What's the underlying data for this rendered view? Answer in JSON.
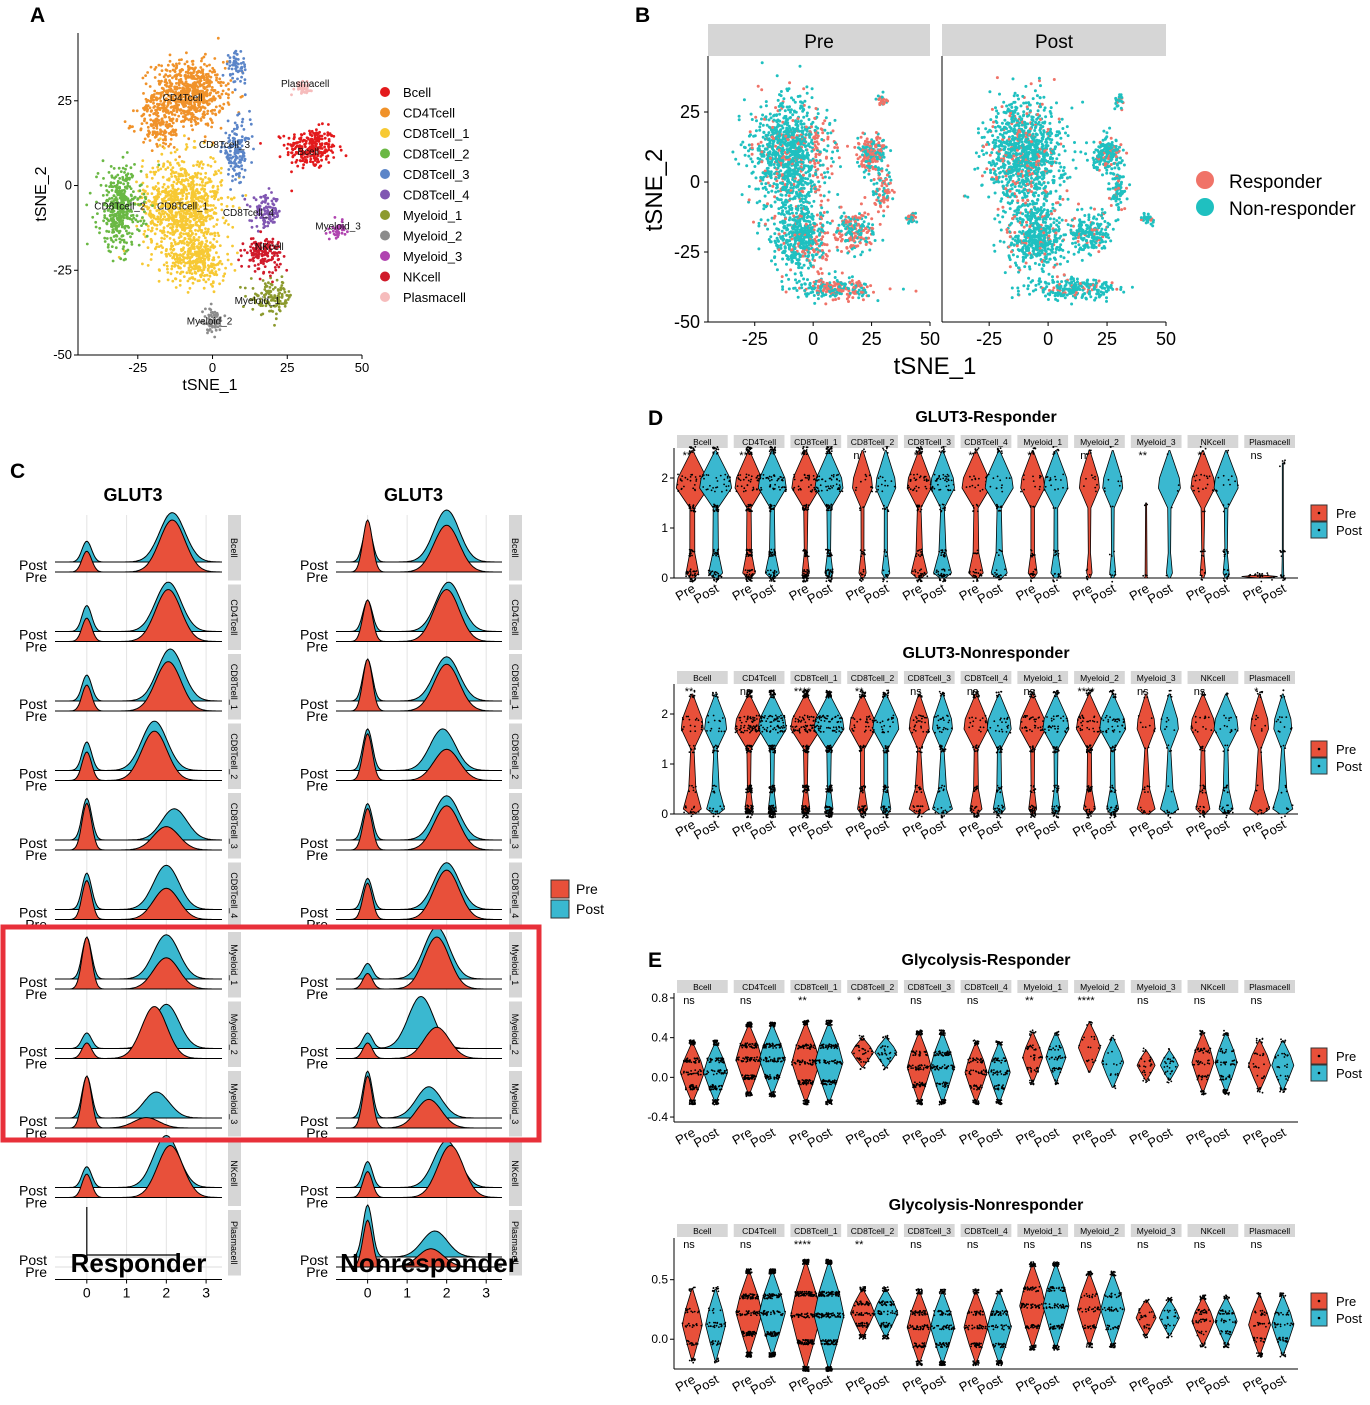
{
  "colors": {
    "pre": "#e8503a",
    "post": "#3ab8d0",
    "responder": "#f07368",
    "nonresponder": "#1fc0c0",
    "strip": "#d6d6d6",
    "highlight": "#e8303a",
    "cluster_colors": [
      "#e31a1c",
      "#f0922a",
      "#f7c934",
      "#6ab844",
      "#5b85c8",
      "#8056b2",
      "#8c9a2e",
      "#8c8c8c",
      "#b044b0",
      "#d01a2a",
      "#f6bcbc"
    ]
  },
  "panel_labels": [
    "A",
    "B",
    "C",
    "D",
    "E"
  ],
  "clusters": [
    "Bcell",
    "CD4Tcell",
    "CD8Tcell_1",
    "CD8Tcell_2",
    "CD8Tcell_3",
    "CD8Tcell_4",
    "Myeloid_1",
    "Myeloid_2",
    "Myeloid_3",
    "NKcell",
    "Plasmacell"
  ],
  "chart_data": [
    {
      "id": "A",
      "type": "scatter",
      "title": "",
      "xlabel": "tSNE_1",
      "ylabel": "tSNE_2",
      "xlim": [
        -45,
        50
      ],
      "ylim": [
        -50,
        45
      ],
      "xticks": [
        "-25",
        "0",
        "25",
        "50"
      ],
      "yticks": [
        "-50",
        "-25",
        "0",
        "25"
      ],
      "legend": [
        "Bcell",
        "CD4Tcell",
        "CD8Tcell_1",
        "CD8Tcell_2",
        "CD8Tcell_3",
        "CD8Tcell_4",
        "Myeloid_1",
        "Myeloid_2",
        "Myeloid_3",
        "NKcell",
        "Plasmacell"
      ],
      "cluster_labels": [
        {
          "label": "Plasmacell",
          "x": 31,
          "y": 29
        },
        {
          "label": "CD4Tcell",
          "x": -10,
          "y": 25
        },
        {
          "label": "CD8Tcell_3",
          "x": 4,
          "y": 11
        },
        {
          "label": "Bcell",
          "x": 32,
          "y": 9
        },
        {
          "label": "CD8Tcell_2",
          "x": -31,
          "y": -7
        },
        {
          "label": "CD8Tcell_1",
          "x": -10,
          "y": -7
        },
        {
          "label": "CD8Tcell_4",
          "x": 12,
          "y": -9
        },
        {
          "label": "Myeloid_3",
          "x": 42,
          "y": -13
        },
        {
          "label": "NKcell",
          "x": 19,
          "y": -19
        },
        {
          "label": "Myeloid_1",
          "x": 15,
          "y": -35
        },
        {
          "label": "Myeloid_2",
          "x": -1,
          "y": -41
        }
      ]
    },
    {
      "id": "B",
      "type": "scatter",
      "facets": [
        "Pre",
        "Post"
      ],
      "xlabel": "tSNE_1",
      "ylabel": "tSNE_2",
      "xlim": [
        -45,
        50
      ],
      "ylim": [
        -50,
        45
      ],
      "xticks": [
        "-25",
        "0",
        "25",
        "50"
      ],
      "yticks": [
        "-50",
        "-25",
        "0",
        "25"
      ],
      "legend": [
        "Responder",
        "Non-responder"
      ]
    },
    {
      "id": "C",
      "type": "area",
      "subtype": "ridgeline",
      "columns": [
        {
          "title": "GLUT3",
          "caption": "Responder"
        },
        {
          "title": "GLUT3",
          "caption": "Nonresponder"
        }
      ],
      "row_labels": [
        "Post",
        "Pre"
      ],
      "strips": [
        "Bcell",
        "CD4Tcell",
        "CD8Tcell_1",
        "CD8Tcell_2",
        "CD8Tcell_3",
        "CD8Tcell_4",
        "Myeloid_1",
        "Myeloid_2",
        "Myeloid_3",
        "NKcell",
        "Plasmacell"
      ],
      "xticks": [
        "0",
        "1",
        "2",
        "3"
      ],
      "xlim": [
        -0.8,
        3.4
      ],
      "legend": [
        "Pre",
        "Post"
      ],
      "highlighted": [
        "Myeloid_1",
        "Myeloid_2",
        "Myeloid_3"
      ],
      "series": [
        {
          "name": "Responder",
          "densities": {
            "Bcell": {
              "pre": [
                [
                  0,
                  0.4
                ],
                [
                  2.15,
                  1.0
                ]
              ],
              "post": [
                [
                  0,
                  0.4
                ],
                [
                  2.15,
                  0.95
                ]
              ]
            },
            "CD4Tcell": {
              "pre": [
                [
                  0,
                  0.45
                ],
                [
                  2.05,
                  1.0
                ]
              ],
              "post": [
                [
                  0,
                  0.5
                ],
                [
                  2.05,
                  0.95
                ]
              ]
            },
            "CD8Tcell_1": {
              "pre": [
                [
                  0,
                  0.5
                ],
                [
                  2.05,
                  0.95
                ]
              ],
              "post": [
                [
                  0,
                  0.5
                ],
                [
                  2.1,
                  1.0
                ]
              ]
            },
            "CD8Tcell_2": {
              "pre": [
                [
                  0,
                  0.55
                ],
                [
                  1.7,
                  0.95
                ]
              ],
              "post": [
                [
                  0,
                  0.55
                ],
                [
                  1.7,
                  0.95
                ]
              ]
            },
            "CD8Tcell_3": {
              "pre": [
                [
                  0,
                  0.9
                ],
                [
                  2.0,
                  0.45
                ]
              ],
              "post": [
                [
                  0,
                  0.8
                ],
                [
                  2.2,
                  0.6
                ]
              ]
            },
            "CD8Tcell_4": {
              "pre": [
                [
                  0,
                  0.75
                ],
                [
                  2.0,
                  0.6
                ]
              ],
              "post": [
                [
                  0,
                  0.7
                ],
                [
                  2.0,
                  0.85
                ]
              ]
            },
            "Myeloid_1": {
              "pre": [
                [
                  0,
                  1.0
                ],
                [
                  2.0,
                  0.6
                ]
              ],
              "post": [
                [
                  0,
                  0.8
                ],
                [
                  2.0,
                  0.85
                ]
              ]
            },
            "Myeloid_2": {
              "pre": [
                [
                  0,
                  0.3
                ],
                [
                  1.7,
                  1.0
                ]
              ],
              "post": [
                [
                  0,
                  0.3
                ],
                [
                  2.0,
                  0.85
                ]
              ]
            },
            "Myeloid_3": {
              "pre": [
                [
                  0,
                  1.0
                ],
                [
                  1.5,
                  0.2
                ]
              ],
              "post": [
                [
                  0,
                  0.8
                ],
                [
                  1.75,
                  0.5
                ]
              ]
            },
            "NKcell": {
              "pre": [
                [
                  0,
                  0.45
                ],
                [
                  2.1,
                  1.0
                ]
              ],
              "post": [
                [
                  0,
                  0.4
                ],
                [
                  2.0,
                  1.0
                ]
              ]
            },
            "Plasmacell": {
              "pre": [
                [
                  0,
                  0.0
                ]
              ],
              "post": [
                [
                  0,
                  1.0
                ]
              ]
            }
          }
        },
        {
          "name": "Nonresponder",
          "densities": {
            "Bcell": {
              "pre": [
                [
                  0,
                  1.0
                ],
                [
                  2.0,
                  0.9
                ]
              ],
              "post": [
                [
                  0,
                  0.7
                ],
                [
                  2.0,
                  1.0
                ]
              ]
            },
            "CD4Tcell": {
              "pre": [
                [
                  0,
                  0.8
                ],
                [
                  2.0,
                  1.0
                ]
              ],
              "post": [
                [
                  0,
                  0.6
                ],
                [
                  2.05,
                  0.95
                ]
              ]
            },
            "CD8Tcell_1": {
              "pre": [
                [
                  0,
                  1.0
                ],
                [
                  2.0,
                  0.9
                ]
              ],
              "post": [
                [
                  0,
                  0.8
                ],
                [
                  2.0,
                  0.85
                ]
              ]
            },
            "CD8Tcell_2": {
              "pre": [
                [
                  0,
                  0.9
                ],
                [
                  2.0,
                  0.6
                ]
              ],
              "post": [
                [
                  0,
                  0.8
                ],
                [
                  1.9,
                  0.8
                ]
              ]
            },
            "CD8Tcell_3": {
              "pre": [
                [
                  0,
                  0.8
                ],
                [
                  2.0,
                  0.85
                ]
              ],
              "post": [
                [
                  0,
                  0.7
                ],
                [
                  2.0,
                  0.85
                ]
              ]
            },
            "CD8Tcell_4": {
              "pre": [
                [
                  0,
                  0.7
                ],
                [
                  2.0,
                  0.95
                ]
              ],
              "post": [
                [
                  0,
                  0.6
                ],
                [
                  2.0,
                  0.9
                ]
              ]
            },
            "Myeloid_1": {
              "pre": [
                [
                  0,
                  0.3
                ],
                [
                  1.75,
                  1.0
                ]
              ],
              "post": [
                [
                  0,
                  0.3
                ],
                [
                  1.75,
                  1.0
                ]
              ]
            },
            "Myeloid_2": {
              "pre": [
                [
                  0,
                  0.3
                ],
                [
                  1.75,
                  0.6
                ]
              ],
              "post": [
                [
                  0,
                  0.3
                ],
                [
                  1.35,
                  1.0
                ]
              ]
            },
            "Myeloid_3": {
              "pre": [
                [
                  0,
                  1.0
                ],
                [
                  1.55,
                  0.55
                ]
              ],
              "post": [
                [
                  0,
                  0.9
                ],
                [
                  1.55,
                  0.6
                ]
              ]
            },
            "NKcell": {
              "pre": [
                [
                  0,
                  0.5
                ],
                [
                  2.1,
                  1.0
                ]
              ],
              "post": [
                [
                  0,
                  0.5
                ],
                [
                  2.0,
                  0.9
                ]
              ]
            },
            "Plasmacell": {
              "pre": [
                [
                  0,
                  0.9
                ],
                [
                  1.6,
                  0.35
                ]
              ],
              "post": [
                [
                  0,
                  1.0
                ],
                [
                  1.7,
                  0.5
                ]
              ]
            }
          }
        }
      ]
    },
    {
      "id": "D-responder",
      "type": "violin",
      "title": "GLUT3-Responder",
      "ylim": [
        0,
        2.6
      ],
      "yticks": [
        "0",
        "1",
        "2"
      ],
      "groups": [
        "Pre",
        "Post"
      ],
      "legend": [
        "Pre",
        "Post"
      ],
      "strips": [
        "Bcell",
        "CD4Tcell",
        "CD8Tcell_1",
        "CD8Tcell_2",
        "CD8Tcell_3",
        "CD8Tcell_4",
        "Myeloid_1",
        "Myeloid_2",
        "Myeloid_3",
        "NKcell",
        "Plasmacell"
      ],
      "significance": [
        "***",
        "***",
        "*",
        "ns",
        "*",
        "**",
        "*",
        "ns",
        "**",
        "*",
        "ns"
      ]
    },
    {
      "id": "D-nonresponder",
      "type": "violin",
      "title": "GLUT3-Nonresponder",
      "ylim": [
        0,
        2.6
      ],
      "yticks": [
        "0",
        "1",
        "2"
      ],
      "groups": [
        "Pre",
        "Post"
      ],
      "legend": [
        "Pre",
        "Post"
      ],
      "strips": [
        "Bcell",
        "CD4Tcell",
        "CD8Tcell_1",
        "CD8Tcell_2",
        "CD8Tcell_3",
        "CD8Tcell_4",
        "Myeloid_1",
        "Myeloid_2",
        "Myeloid_3",
        "NKcell",
        "Plasmacell"
      ],
      "significance": [
        "**",
        "ns",
        "****",
        "**",
        "ns",
        "ns",
        "ns",
        "****",
        "ns",
        "ns",
        "*"
      ]
    },
    {
      "id": "E-responder",
      "type": "violin",
      "title": "Glycolysis-Responder",
      "ylim": [
        -0.45,
        0.85
      ],
      "yticks": [
        "-0.4",
        "0.0",
        "0.4",
        "0.8"
      ],
      "groups": [
        "Pre",
        "Post"
      ],
      "legend": [
        "Pre",
        "Post"
      ],
      "strips": [
        "Bcell",
        "CD4Tcell",
        "CD8Tcell_1",
        "CD8Tcell_2",
        "CD8Tcell_3",
        "CD8Tcell_4",
        "Myeloid_1",
        "Myeloid_2",
        "Myeloid_3",
        "NKcell",
        "Plasmacell"
      ],
      "significance": [
        "ns",
        "ns",
        "**",
        "*",
        "ns",
        "ns",
        "**",
        "****",
        "ns",
        "ns",
        "ns"
      ]
    },
    {
      "id": "E-nonresponder",
      "type": "violin",
      "title": "Glycolysis-Nonresponder",
      "ylim": [
        -0.25,
        0.85
      ],
      "yticks": [
        "0.0",
        "0.5"
      ],
      "groups": [
        "Pre",
        "Post"
      ],
      "legend": [
        "Pre",
        "Post"
      ],
      "strips": [
        "Bcell",
        "CD4Tcell",
        "CD8Tcell_1",
        "CD8Tcell_2",
        "CD8Tcell_3",
        "CD8Tcell_4",
        "Myeloid_1",
        "Myeloid_2",
        "Myeloid_3",
        "NKcell",
        "Plasmacell"
      ],
      "significance": [
        "ns",
        "ns",
        "****",
        "**",
        "ns",
        "ns",
        "ns",
        "ns",
        "ns",
        "ns",
        "ns"
      ]
    }
  ]
}
